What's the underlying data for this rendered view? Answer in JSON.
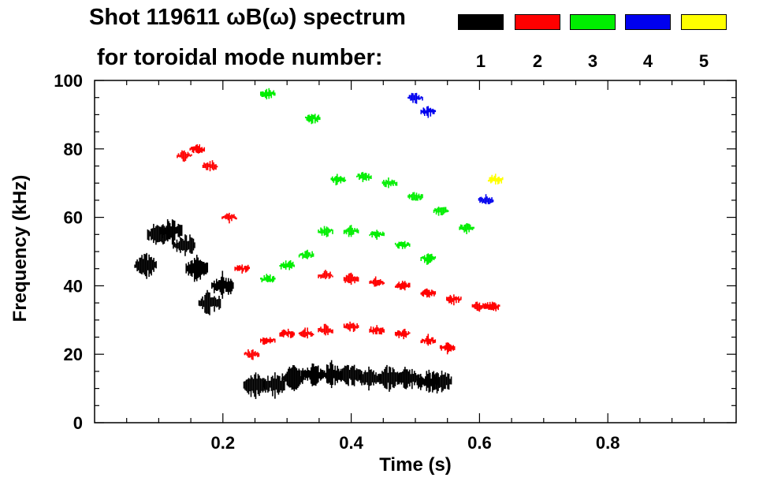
{
  "title": {
    "line1": "Shot 119611 ωB(ω) spectrum",
    "line2": "for toroidal mode number:"
  },
  "legend": [
    {
      "label": "1",
      "color": "#000000"
    },
    {
      "label": "2",
      "color": "#ff0000"
    },
    {
      "label": "3",
      "color": "#00ee00"
    },
    {
      "label": "4",
      "color": "#0000ee"
    },
    {
      "label": "5",
      "color": "#ffff00"
    }
  ],
  "chart_data": {
    "type": "scatter",
    "title": "Shot 119611 ωB(ω) spectrum",
    "xlabel": "Time (s)",
    "ylabel": "Frequency (kHz)",
    "xlim": [
      0.0,
      1.0
    ],
    "ylim": [
      0,
      100
    ],
    "xticks": [
      0.2,
      0.4,
      0.6,
      0.8
    ],
    "xtick_labels": [
      "0.2",
      "0.4",
      "0.6",
      "0.8"
    ],
    "yticks": [
      0,
      20,
      40,
      60,
      80,
      100
    ],
    "ytick_labels": [
      "0",
      "20",
      "40",
      "60",
      "80",
      "100"
    ],
    "series": [
      {
        "name": "n=1",
        "color": "#000000",
        "description_points": [
          {
            "t": 0.08,
            "f": 46
          },
          {
            "t": 0.1,
            "f": 55
          },
          {
            "t": 0.12,
            "f": 56
          },
          {
            "t": 0.14,
            "f": 52
          },
          {
            "t": 0.16,
            "f": 45
          },
          {
            "t": 0.18,
            "f": 35
          },
          {
            "t": 0.2,
            "f": 40
          },
          {
            "t": 0.25,
            "f": 11
          },
          {
            "t": 0.28,
            "f": 11
          },
          {
            "t": 0.31,
            "f": 13
          },
          {
            "t": 0.34,
            "f": 14
          },
          {
            "t": 0.37,
            "f": 14
          },
          {
            "t": 0.4,
            "f": 14
          },
          {
            "t": 0.43,
            "f": 13
          },
          {
            "t": 0.46,
            "f": 13
          },
          {
            "t": 0.49,
            "f": 13
          },
          {
            "t": 0.52,
            "f": 12
          },
          {
            "t": 0.54,
            "f": 12
          }
        ]
      },
      {
        "name": "n=2",
        "color": "#ff0000",
        "description_points": [
          {
            "t": 0.14,
            "f": 78
          },
          {
            "t": 0.16,
            "f": 80
          },
          {
            "t": 0.18,
            "f": 75
          },
          {
            "t": 0.21,
            "f": 60
          },
          {
            "t": 0.23,
            "f": 45
          },
          {
            "t": 0.245,
            "f": 20
          },
          {
            "t": 0.27,
            "f": 24
          },
          {
            "t": 0.3,
            "f": 26
          },
          {
            "t": 0.33,
            "f": 26
          },
          {
            "t": 0.36,
            "f": 27
          },
          {
            "t": 0.4,
            "f": 28
          },
          {
            "t": 0.44,
            "f": 27
          },
          {
            "t": 0.48,
            "f": 26
          },
          {
            "t": 0.52,
            "f": 24
          },
          {
            "t": 0.55,
            "f": 22
          },
          {
            "t": 0.36,
            "f": 43
          },
          {
            "t": 0.4,
            "f": 42
          },
          {
            "t": 0.44,
            "f": 41
          },
          {
            "t": 0.48,
            "f": 40
          },
          {
            "t": 0.52,
            "f": 38
          },
          {
            "t": 0.56,
            "f": 36
          },
          {
            "t": 0.6,
            "f": 34
          },
          {
            "t": 0.62,
            "f": 34
          }
        ]
      },
      {
        "name": "n=3",
        "color": "#00ee00",
        "description_points": [
          {
            "t": 0.27,
            "f": 42
          },
          {
            "t": 0.3,
            "f": 46
          },
          {
            "t": 0.33,
            "f": 49
          },
          {
            "t": 0.36,
            "f": 56
          },
          {
            "t": 0.4,
            "f": 56
          },
          {
            "t": 0.44,
            "f": 55
          },
          {
            "t": 0.48,
            "f": 52
          },
          {
            "t": 0.52,
            "f": 48
          },
          {
            "t": 0.38,
            "f": 71
          },
          {
            "t": 0.42,
            "f": 72
          },
          {
            "t": 0.46,
            "f": 70
          },
          {
            "t": 0.5,
            "f": 66
          },
          {
            "t": 0.54,
            "f": 62
          },
          {
            "t": 0.58,
            "f": 57
          },
          {
            "t": 0.34,
            "f": 89
          },
          {
            "t": 0.27,
            "f": 96
          }
        ]
      },
      {
        "name": "n=4",
        "color": "#0000ee",
        "description_points": [
          {
            "t": 0.5,
            "f": 95
          },
          {
            "t": 0.52,
            "f": 91
          },
          {
            "t": 0.61,
            "f": 65
          }
        ]
      },
      {
        "name": "n=5",
        "color": "#ffff00",
        "description_points": [
          {
            "t": 0.625,
            "f": 71
          }
        ]
      }
    ]
  }
}
